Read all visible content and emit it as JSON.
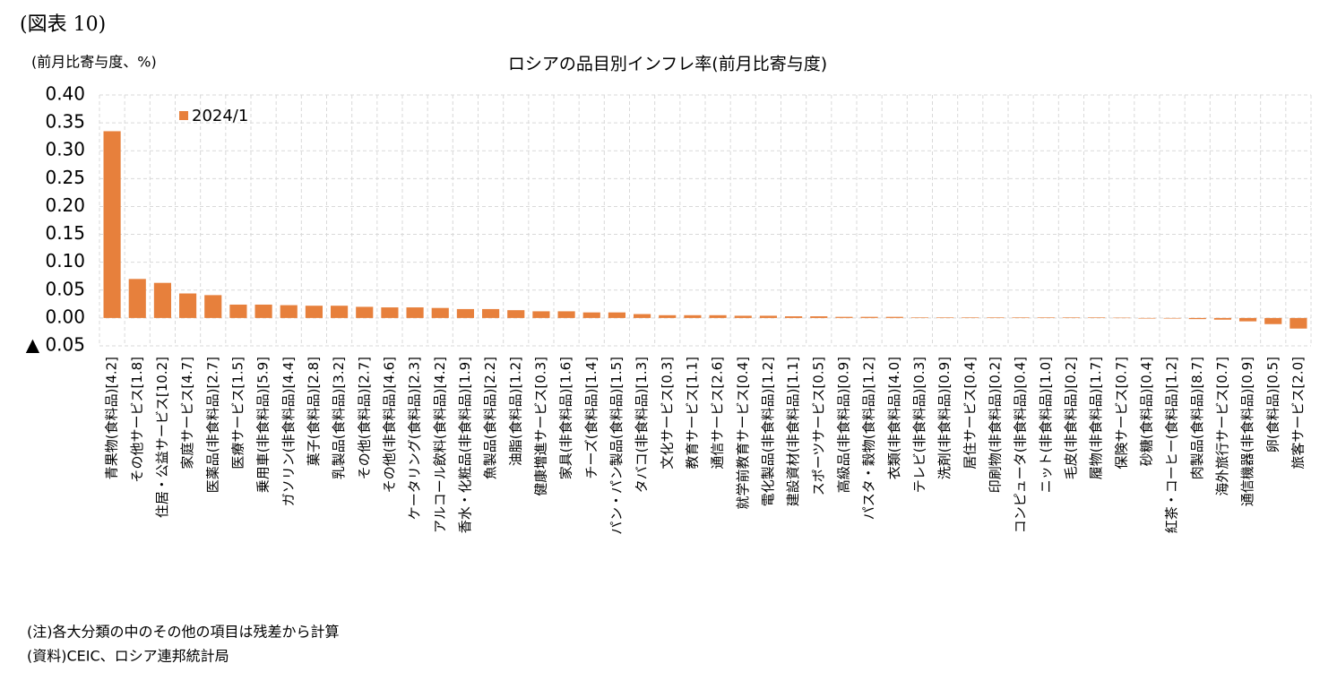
{
  "figure_label": "(図表 10)",
  "notes": [
    "(注)各大分類の中のその他の項目は残差から計算",
    "(資料)CEIC、ロシア連邦統計局"
  ],
  "chart_data": {
    "type": "bar",
    "title": "ロシアの品目別インフレ率(前月比寄与度)",
    "y_label": "(前月比寄与度、%)",
    "categories": [
      "青果物(食料品)[4.2]",
      "その他サービス[1.8]",
      "住居・公益サービス[10.2]",
      "家庭サービス[4.7]",
      "医薬品(非食料品)[2.7]",
      "医療サービス[1.5]",
      "乗用車(非食料品)[5.9]",
      "ガソリン(非食料品)[4.4]",
      "菓子(食料品)[2.8]",
      "乳製品(食料品)[3.2]",
      "その他(食料品)[2.7]",
      "その他(非食料品)[4.6]",
      "ケータリング(食料品)[2.3]",
      "アルコール飲料(食料品)[4.2]",
      "香水・化粧品(非食料品)[1.9]",
      "魚製品(食料品)[2.2]",
      "油脂(食料品)[1.2]",
      "健康増進サービス[0.3]",
      "家具(非食料品)[1.6]",
      "チーズ(食料品)[1.4]",
      "パン・パン製品(食料品)[1.5]",
      "タバコ(非食料品)[1.3]",
      "文化サービス[0.3]",
      "教育サービス[1.1]",
      "通信サービス[2.6]",
      "就学前教育サービス[0.4]",
      "電化製品(非食料品)[1.2]",
      "建設資材(非食料品)[1.1]",
      "スポーツサービス[0.5]",
      "高級品(非食料品)[0.9]",
      "パスタ・穀物(食料品)[1.2]",
      "衣類(非食料品)[4.0]",
      "テレビ(非食料品)[0.3]",
      "洗剤(非食料品)[0.9]",
      "居住サービス[0.4]",
      "印刷物(非食料品)[0.2]",
      "コンピュータ(非食料品)[0.4]",
      "ニット(非食料品)[1.0]",
      "毛皮(非食料品)[0.2]",
      "履物(非食料品)[1.7]",
      "保険サービス[0.7]",
      "砂糖(食料品)[0.4]",
      "紅茶・コーヒー(食料品)[1.2]",
      "肉製品(食料品)[8.7]",
      "海外旅行サービス[0.7]",
      "通信機器(非食料品)[0.9]",
      "卵(食料品)[0.5]",
      "旅客サービス[2.0]"
    ],
    "series": [
      {
        "name": "2024/1",
        "color": "#e7803c",
        "values": [
          0.335,
          0.07,
          0.063,
          0.044,
          0.041,
          0.024,
          0.024,
          0.023,
          0.022,
          0.022,
          0.02,
          0.019,
          0.019,
          0.018,
          0.016,
          0.016,
          0.014,
          0.012,
          0.012,
          0.01,
          0.01,
          0.007,
          0.005,
          0.005,
          0.005,
          0.004,
          0.004,
          0.003,
          0.003,
          0.002,
          0.002,
          0.002,
          0.001,
          0.001,
          0.001,
          0.001,
          0.001,
          0.001,
          0.001,
          0.001,
          0.0005,
          -0.001,
          -0.001,
          -0.002,
          -0.003,
          -0.006,
          -0.011,
          -0.019
        ]
      }
    ],
    "ylim": [
      -0.05,
      0.4
    ],
    "yticks": [
      {
        "value": -0.05,
        "label": "▲ 0.05"
      },
      {
        "value": 0,
        "label": "0.00"
      },
      {
        "value": 0.05,
        "label": "0.05"
      },
      {
        "value": 0.1,
        "label": "0.10"
      },
      {
        "value": 0.15,
        "label": "0.15"
      },
      {
        "value": 0.2,
        "label": "0.20"
      },
      {
        "value": 0.25,
        "label": "0.25"
      },
      {
        "value": 0.3,
        "label": "0.30"
      },
      {
        "value": 0.35,
        "label": "0.35"
      },
      {
        "value": 0.4,
        "label": "0.40"
      }
    ],
    "grid": true,
    "legend": "upper left"
  }
}
